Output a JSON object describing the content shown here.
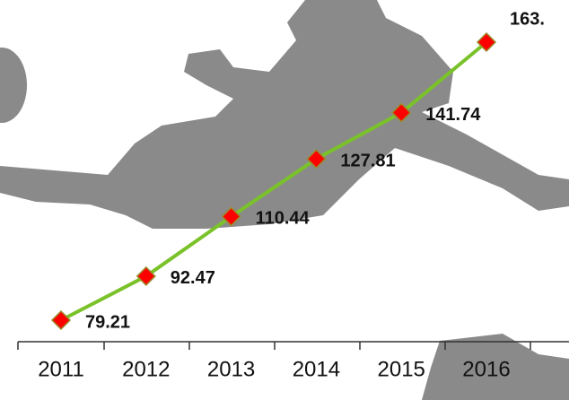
{
  "chart_data": {
    "type": "line",
    "categories": [
      "2011",
      "2012",
      "2013",
      "2014",
      "2015",
      "2016"
    ],
    "values": [
      79.21,
      92.47,
      110.44,
      127.81,
      141.74,
      163
    ],
    "value_labels": [
      "79.21",
      "92.47",
      "110.44",
      "127.81",
      "141.74",
      "163."
    ],
    "color": "#7ac229",
    "marker_color": "#ff0000"
  }
}
